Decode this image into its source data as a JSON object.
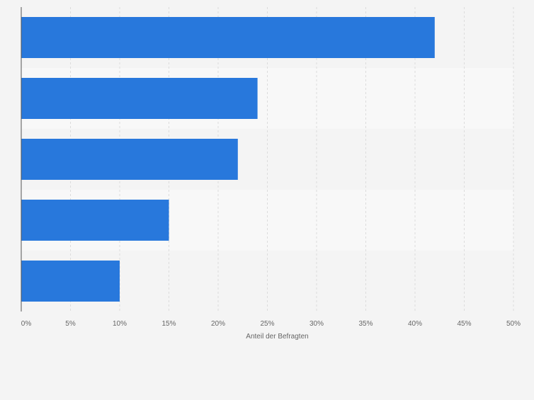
{
  "colors": {
    "bar": "#2878dc",
    "band_dark": "#f4f4f4",
    "band_light": "#f8f8f8",
    "grid": "#dcdcdc",
    "axis": "#555555",
    "tick_text": "#666666"
  },
  "chart_data": {
    "type": "bar",
    "orientation": "horizontal",
    "categories": [
      "",
      "",
      "",
      "",
      ""
    ],
    "values": [
      42,
      24,
      22,
      15,
      10
    ],
    "unit": "%",
    "xlabel": "Anteil der Befragten",
    "ylabel": "",
    "xlim": [
      0,
      50
    ],
    "ticks": [
      "0%",
      "5%",
      "10%",
      "15%",
      "20%",
      "25%",
      "30%",
      "35%",
      "40%",
      "45%",
      "50%"
    ],
    "grid": true,
    "legend": "none"
  }
}
